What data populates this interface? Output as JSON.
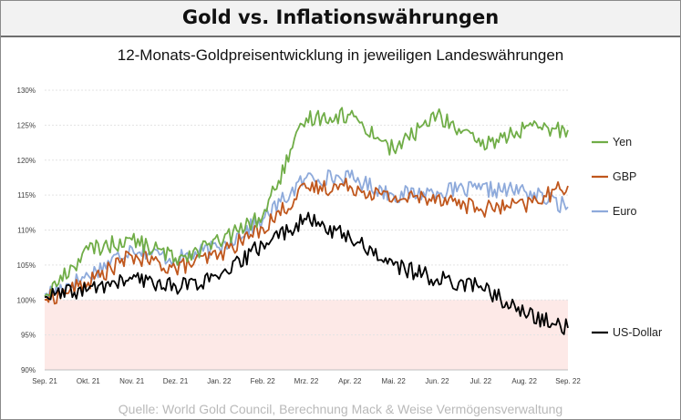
{
  "header": {
    "title": "Gold vs. Inflationswährungen"
  },
  "chart_data": {
    "type": "line",
    "title": "12-Monats-Goldpreisentwicklung in jeweiligen Landeswährungen",
    "xlabel": "",
    "ylabel": "",
    "ylim": [
      90,
      130
    ],
    "yticks": [
      90,
      95,
      100,
      105,
      110,
      115,
      120,
      125,
      130
    ],
    "ytick_labels": [
      "90%",
      "95%",
      "100%",
      "105%",
      "110%",
      "115%",
      "120%",
      "125%",
      "130%"
    ],
    "categories": [
      "Sep. 21",
      "Okt. 21",
      "Nov. 21",
      "Dez. 21",
      "Jan. 22",
      "Feb. 22",
      "Mrz. 22",
      "Apr. 22",
      "Mai. 22",
      "Jun. 22",
      "Jul. 22",
      "Aug. 22",
      "Sep. 22"
    ],
    "grid": true,
    "legend_position": "right",
    "shaded_band": {
      "from": 90,
      "to": 100,
      "color": "#fde9e7"
    },
    "series": [
      {
        "name": "Yen",
        "color": "#70ad47",
        "values": [
          100.5,
          107.2,
          108.6,
          106.0,
          108.3,
          112.0,
          126.0,
          126.5,
          121.5,
          126.5,
          122.0,
          124.5,
          124.3
        ]
      },
      {
        "name": "GBP",
        "color": "#c0571d",
        "values": [
          100.0,
          102.5,
          106.3,
          104.5,
          106.5,
          110.3,
          116.0,
          116.3,
          114.5,
          114.8,
          113.0,
          113.5,
          116.3
        ]
      },
      {
        "name": "Euro",
        "color": "#8eaadb",
        "values": [
          100.8,
          103.5,
          107.5,
          105.8,
          107.5,
          111.5,
          117.5,
          117.5,
          115.0,
          115.5,
          115.8,
          115.6,
          113.3
        ]
      },
      {
        "name": "US-Dollar",
        "color": "#000000",
        "values": [
          100.4,
          101.5,
          103.0,
          102.0,
          103.0,
          108.0,
          111.5,
          109.0,
          105.0,
          103.0,
          102.0,
          98.0,
          96.0
        ]
      }
    ]
  },
  "footer": {
    "source": "Quelle: World Gold Council, Berechnung Mack & Weise Vermögensverwaltung"
  }
}
